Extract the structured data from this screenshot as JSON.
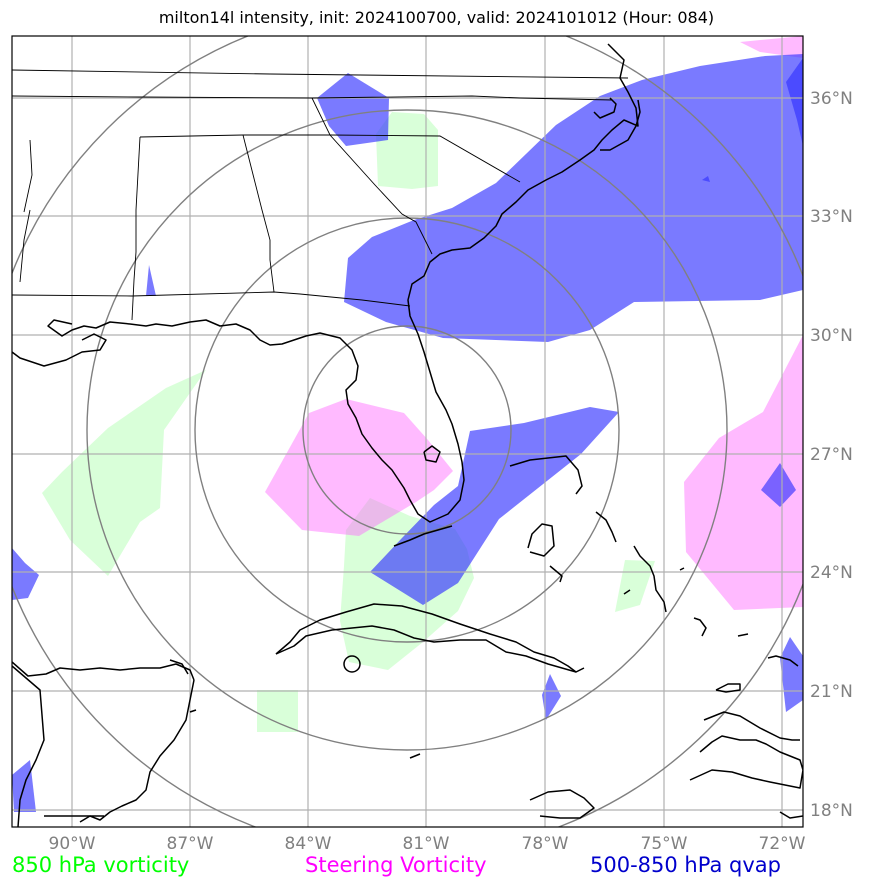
{
  "title": "milton14l intensity, init: 2024100700, valid: 2024101012 (Hour: 084)",
  "lon_labels": [
    "90°W",
    "87°W",
    "84°W",
    "81°W",
    "78°W",
    "75°W",
    "72°W"
  ],
  "lat_labels": [
    "36°N",
    "33°N",
    "30°N",
    "27°N",
    "24°N",
    "21°N",
    "18°N"
  ],
  "legend": {
    "green": {
      "label": "850 hPa vorticity",
      "color": "#00ff00"
    },
    "magenta": {
      "label": "Steering Vorticity",
      "color": "#ff00ff"
    },
    "blue": {
      "label": "500-850 hPa qvap",
      "color": "#0000cc"
    }
  },
  "colors": {
    "green_fill": "#ccffcc",
    "magenta_fill": "#ffaaff",
    "blue_fill": "#3333ff",
    "grid": "#b0b0b0",
    "rings": "#808080",
    "coast": "#000000",
    "tick_label": "#808080"
  }
}
